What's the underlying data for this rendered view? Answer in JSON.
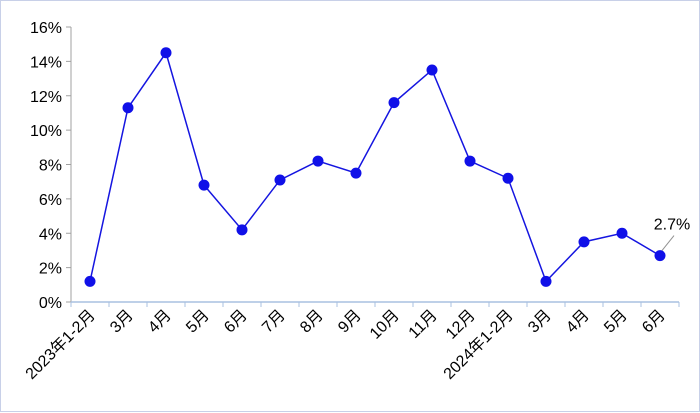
{
  "chart_data": {
    "type": "line",
    "title": "",
    "xlabel": "",
    "ylabel": "",
    "categories": [
      "2023年1-2月",
      "3月",
      "4月",
      "5月",
      "6月",
      "7月",
      "8月",
      "9月",
      "10月",
      "11月",
      "12月",
      "2024年1-2月",
      "3月",
      "4月",
      "5月",
      "6月"
    ],
    "series": [
      {
        "values": [
          1.2,
          11.3,
          14.5,
          6.8,
          4.2,
          7.1,
          8.2,
          7.5,
          11.6,
          13.5,
          8.2,
          7.2,
          1.2,
          3.5,
          4.0,
          2.7
        ]
      }
    ],
    "ylim": [
      0,
      16
    ],
    "yticks": [
      0,
      2,
      4,
      6,
      8,
      10,
      12,
      14,
      16
    ],
    "ytick_labels": [
      "0%",
      "2%",
      "4%",
      "6%",
      "8%",
      "10%",
      "12%",
      "14%",
      "16%"
    ],
    "annotations": [
      {
        "index": 15,
        "text": "2.7%"
      }
    ],
    "grid": false,
    "colors": {
      "line": "#1515e0",
      "marker": "#1010e8"
    }
  }
}
